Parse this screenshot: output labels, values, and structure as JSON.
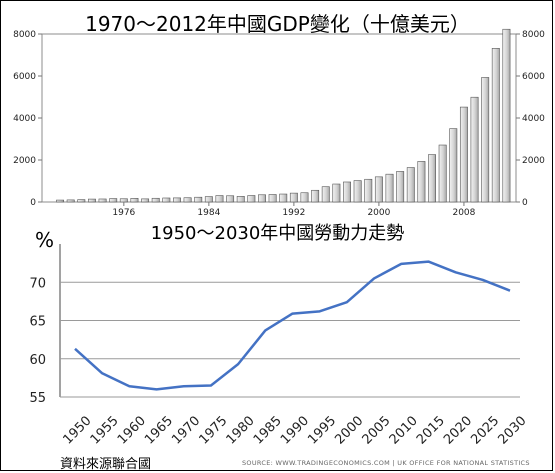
{
  "chart_data": [
    {
      "type": "bar",
      "title": "1970～2012年中國GDP變化（十億美元）",
      "x": [
        1970,
        1971,
        1972,
        1973,
        1974,
        1975,
        1976,
        1977,
        1978,
        1979,
        1980,
        1981,
        1982,
        1983,
        1984,
        1985,
        1986,
        1987,
        1988,
        1989,
        1990,
        1991,
        1992,
        1993,
        1994,
        1995,
        1996,
        1997,
        1998,
        1999,
        2000,
        2001,
        2002,
        2003,
        2004,
        2005,
        2006,
        2007,
        2008,
        2009,
        2010,
        2011,
        2012
      ],
      "values": [
        92,
        100,
        114,
        139,
        144,
        163,
        154,
        175,
        149,
        178,
        191,
        196,
        203,
        228,
        257,
        306,
        297,
        270,
        309,
        344,
        357,
        379,
        423,
        441,
        559,
        728,
        856,
        953,
        1019,
        1083,
        1198,
        1325,
        1454,
        1641,
        1932,
        2257,
        2713,
        3494,
        4520,
        4990,
        5930,
        7318,
        8227
      ],
      "x_ticks": [
        "1976",
        "1984",
        "1992",
        "2000",
        "2008"
      ],
      "y_ticks": [
        "0",
        "2000",
        "4000",
        "6000",
        "8000"
      ],
      "ylim": [
        0,
        8000
      ]
    },
    {
      "type": "line",
      "title": "1950～2030年中國勞動力走勢",
      "unit": "%",
      "x": [
        "1950",
        "1955",
        "1960",
        "1965",
        "1970",
        "1975",
        "1980",
        "1985",
        "1990",
        "1995",
        "2000",
        "2005",
        "2010",
        "2015",
        "2020",
        "2025",
        "2030"
      ],
      "values": [
        61.3,
        58.1,
        56.4,
        56.0,
        56.4,
        56.5,
        59.3,
        63.7,
        65.9,
        66.2,
        67.4,
        70.5,
        72.4,
        72.7,
        71.3,
        70.3,
        68.9
      ],
      "y_ticks": [
        "55",
        "60",
        "65",
        "70"
      ],
      "ylim": [
        55,
        75
      ],
      "line_color": "#4472c4"
    }
  ],
  "notes": {
    "left": "資料來源聯合國",
    "right": "SOURCE: WWW.TRADINGECONOMICS.COM  |  UK OFFICE FOR NATIONAL STATISTICS"
  }
}
